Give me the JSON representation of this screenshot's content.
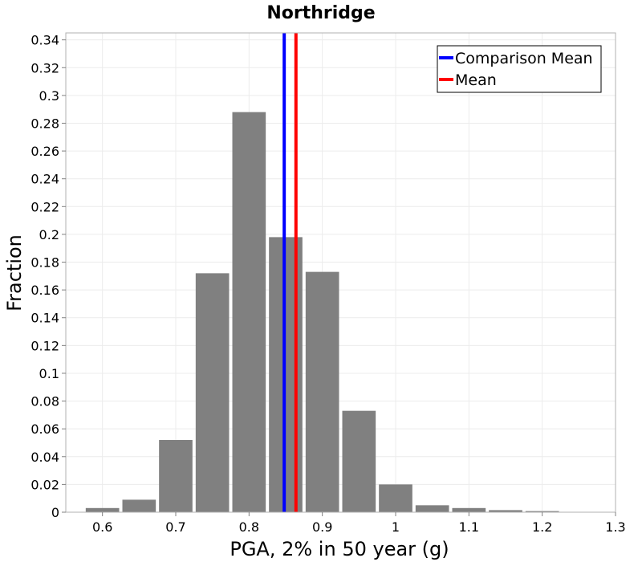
{
  "chart_data": {
    "type": "bar",
    "title": "Northridge",
    "xlabel": "PGA, 2% in 50 year (g)",
    "ylabel": "Fraction",
    "xlim": [
      0.55,
      1.3
    ],
    "ylim": [
      0,
      0.345
    ],
    "xticks": [
      "0.6",
      "0.7",
      "0.8",
      "0.9",
      "1",
      "1.1",
      "1.2",
      "1.3"
    ],
    "yticks": [
      "0",
      "0.02",
      "0.04",
      "0.06",
      "0.08",
      "0.1",
      "0.12",
      "0.14",
      "0.16",
      "0.18",
      "0.2",
      "0.22",
      "0.24",
      "0.26",
      "0.28",
      "0.3",
      "0.32",
      "0.34"
    ],
    "bin_width": 0.05,
    "bins": [
      0.6,
      0.65,
      0.7,
      0.75,
      0.8,
      0.85,
      0.9,
      0.95,
      1.0,
      1.05,
      1.1,
      1.15,
      1.2
    ],
    "values": [
      0.003,
      0.009,
      0.052,
      0.172,
      0.288,
      0.198,
      0.173,
      0.073,
      0.02,
      0.005,
      0.003,
      0.0015,
      0.0008
    ],
    "bar_color": "#808080",
    "grid": true,
    "lines": [
      {
        "name": "Comparison Mean",
        "x": 0.848,
        "color": "#0000ff"
      },
      {
        "name": "Mean",
        "x": 0.864,
        "color": "#ff0000"
      }
    ],
    "legend": {
      "position": "top-right",
      "entries": [
        "Comparison Mean",
        "Mean"
      ]
    }
  }
}
